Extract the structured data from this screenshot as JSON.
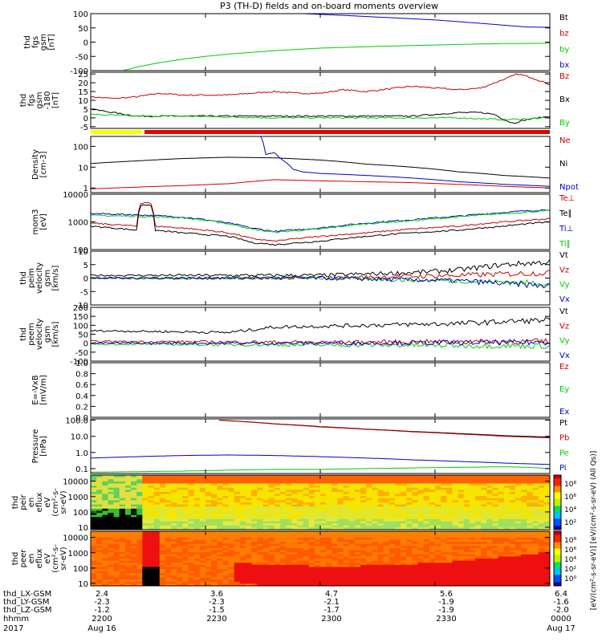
{
  "title": "P3 (TH-D) fields and on-board moments overview",
  "colors": {
    "black": "#000000",
    "red": "#cc0000",
    "green": "#00cc00",
    "blue": "#0000cc",
    "bar_yellow": "#ffff00",
    "bar_red": "#e60000"
  },
  "chart_data": [
    {
      "id": "fgs-gsm",
      "type": "line",
      "ylabel": [
        "thd",
        "fgs",
        "gsm",
        "[nT]"
      ],
      "ylim": [
        -100,
        100
      ],
      "yticks": [
        "100",
        "50",
        "0",
        "-50",
        "-100"
      ],
      "yticks_values": [
        100,
        50,
        0,
        -50,
        -100
      ],
      "legend": [
        {
          "label": "Bt",
          "color": "#000000"
        },
        {
          "label": "bz",
          "color": "#cc0000"
        },
        {
          "label": "by",
          "color": "#00cc00"
        },
        {
          "label": "bx",
          "color": "#0000cc"
        }
      ],
      "series": [
        {
          "name": "bx",
          "color": "#0000cc",
          "x": [
            0.25,
            0.35,
            0.45,
            0.55,
            0.65,
            0.75,
            0.85,
            0.95,
            1.0
          ],
          "values": [
            112,
            108,
            101,
            94,
            86,
            78,
            66,
            53,
            52
          ]
        },
        {
          "name": "by",
          "color": "#00cc00",
          "x": [
            0.07,
            0.1,
            0.15,
            0.2,
            0.25,
            0.3,
            0.4,
            0.5,
            0.6,
            0.7,
            0.8,
            0.9,
            1.0
          ],
          "values": [
            -100,
            -88,
            -72,
            -60,
            -50,
            -42,
            -30,
            -21,
            -16,
            -12,
            -8,
            -5,
            -4
          ]
        }
      ]
    },
    {
      "id": "fgs-gsm-zoom",
      "type": "line",
      "ylabel": [
        "thd",
        "fgs",
        "gsm",
        "-180",
        "[nT]"
      ],
      "ylim": [
        -6,
        26
      ],
      "yticks": [
        "25",
        "20",
        "15",
        "10",
        "5",
        "0",
        "-5"
      ],
      "yticks_values": [
        25,
        20,
        15,
        10,
        5,
        0,
        -5
      ],
      "legend": [
        {
          "label": "Bz",
          "color": "#cc0000"
        },
        {
          "label": "Bx",
          "color": "#000000"
        },
        {
          "label": "By",
          "color": "#00cc00"
        }
      ],
      "series": [
        {
          "name": "Bz",
          "color": "#cc0000",
          "x": [
            0,
            0.05,
            0.1,
            0.15,
            0.2,
            0.3,
            0.4,
            0.45,
            0.5,
            0.55,
            0.6,
            0.7,
            0.75,
            0.8,
            0.85,
            0.9,
            0.93,
            0.96,
            1.0
          ],
          "values": [
            12,
            11,
            12,
            14,
            13,
            13,
            15,
            14,
            14,
            16,
            15,
            18,
            17,
            16,
            17,
            22,
            25,
            23,
            19
          ]
        },
        {
          "name": "Bx",
          "color": "#000000",
          "x": [
            0,
            0.05,
            0.1,
            0.2,
            0.3,
            0.4,
            0.5,
            0.6,
            0.7,
            0.75,
            0.8,
            0.85,
            0.88,
            0.9,
            0.92,
            0.95,
            1.0
          ],
          "values": [
            5,
            3,
            1,
            1,
            1,
            1,
            1,
            1,
            1,
            2,
            3,
            3,
            2,
            -1,
            -3,
            -1,
            1
          ]
        },
        {
          "name": "By",
          "color": "#00cc00",
          "x": [
            0,
            0.1,
            0.2,
            0.4,
            0.6,
            0.8,
            0.9,
            1.0
          ],
          "values": [
            2,
            1,
            1,
            0,
            0,
            0,
            -1,
            0
          ]
        }
      ]
    },
    {
      "id": "density",
      "type": "line",
      "log": true,
      "ylabel": [
        "Density",
        "[cm-3]"
      ],
      "ylim": [
        0.6,
        300
      ],
      "yticks": [
        "100",
        "10",
        "1"
      ],
      "yticks_values": [
        100,
        10,
        1
      ],
      "legend": [
        {
          "label": "Ne",
          "color": "#cc0000"
        },
        {
          "label": "Ni",
          "color": "#000000"
        },
        {
          "label": "Npot",
          "color": "#0000cc"
        }
      ],
      "series": [
        {
          "name": "Ni",
          "color": "#000000",
          "x": [
            0,
            0.1,
            0.2,
            0.3,
            0.4,
            0.5,
            0.6,
            0.7,
            0.8,
            0.9,
            1.0
          ],
          "values": [
            15,
            20,
            26,
            30,
            28,
            22,
            14,
            10,
            6,
            4,
            3
          ]
        },
        {
          "name": "Ne",
          "color": "#cc0000",
          "x": [
            0,
            0.1,
            0.2,
            0.3,
            0.37,
            0.4,
            0.5,
            0.6,
            0.7,
            0.8,
            0.9,
            1.0
          ],
          "values": [
            0.9,
            1.1,
            1.3,
            1.6,
            2.2,
            2.5,
            2.2,
            2.0,
            1.8,
            1.5,
            1.2,
            1.0
          ]
        },
        {
          "name": "Npot",
          "color": "#0000cc",
          "x": [
            0.37,
            0.38,
            0.4,
            0.41,
            0.42,
            0.44,
            0.46,
            0.5,
            0.6,
            0.7,
            0.8,
            0.9,
            1.0
          ],
          "values": [
            300,
            40,
            50,
            30,
            20,
            8,
            6,
            5,
            4,
            3,
            2,
            1.5,
            1.2
          ]
        }
      ]
    },
    {
      "id": "temperature",
      "type": "line",
      "log": true,
      "ylabel": [
        "mom3",
        "[eV]"
      ],
      "ylim": [
        100,
        10000
      ],
      "yticks": [
        "10000",
        "1000",
        "100"
      ],
      "yticks_values": [
        10000,
        1000,
        100
      ],
      "legend": [
        {
          "label": "Te⊥",
          "color": "#cc0000"
        },
        {
          "label": "Te∥",
          "color": "#000000"
        },
        {
          "label": "Ti⊥",
          "color": "#0000cc"
        },
        {
          "label": "Ti∥",
          "color": "#00cc00"
        }
      ],
      "series": [
        {
          "name": "Ti⊥",
          "color": "#0000cc",
          "x": [
            0,
            0.1,
            0.2,
            0.3,
            0.35,
            0.4,
            0.5,
            0.6,
            0.7,
            0.8,
            0.9,
            1.0
          ],
          "values": [
            2000,
            1800,
            1500,
            900,
            600,
            450,
            600,
            900,
            1200,
            1600,
            2200,
            2800
          ]
        },
        {
          "name": "Ti∥",
          "color": "#00cc00",
          "x": [
            0,
            0.1,
            0.2,
            0.3,
            0.35,
            0.4,
            0.5,
            0.6,
            0.7,
            0.8,
            0.9,
            1.0
          ],
          "values": [
            1700,
            1600,
            1400,
            850,
            550,
            420,
            550,
            850,
            1100,
            1500,
            2000,
            2500
          ]
        },
        {
          "name": "Te⊥",
          "color": "#cc0000",
          "x": [
            0,
            0.1,
            0.11,
            0.13,
            0.14,
            0.2,
            0.3,
            0.35,
            0.4,
            0.5,
            0.6,
            0.7,
            0.8,
            0.9,
            1.0
          ],
          "values": [
            900,
            700,
            5000,
            5000,
            700,
            600,
            400,
            250,
            200,
            300,
            400,
            550,
            700,
            1000,
            1300
          ]
        },
        {
          "name": "Te∥",
          "color": "#000000",
          "x": [
            0,
            0.1,
            0.11,
            0.13,
            0.14,
            0.2,
            0.3,
            0.35,
            0.4,
            0.5,
            0.6,
            0.7,
            0.8,
            0.9,
            1.0
          ],
          "values": [
            700,
            500,
            4200,
            4200,
            500,
            400,
            300,
            180,
            150,
            200,
            300,
            400,
            500,
            700,
            1000
          ]
        }
      ]
    },
    {
      "id": "peim-velocity",
      "type": "line",
      "ylabel": [
        "thd",
        "peim",
        "velocity",
        "gsm",
        "[km/s]"
      ],
      "ylim": [
        -10,
        10
      ],
      "yticks": [
        "10",
        "5",
        "0",
        "-5",
        "-10"
      ],
      "yticks_values": [
        10,
        5,
        0,
        -5,
        -10
      ],
      "legend": [
        {
          "label": "Vt",
          "color": "#000000"
        },
        {
          "label": "Vz",
          "color": "#cc0000"
        },
        {
          "label": "Vy",
          "color": "#00cc00"
        },
        {
          "label": "Vx",
          "color": "#0000cc"
        }
      ],
      "series": [
        {
          "name": "Vt",
          "color": "#000000",
          "x": [
            0,
            0.3,
            0.5,
            0.7,
            0.8,
            0.9,
            1.0
          ],
          "values": [
            1,
            1,
            1,
            2,
            3,
            5,
            6
          ]
        },
        {
          "name": "Vz",
          "color": "#cc0000",
          "x": [
            0,
            0.5,
            0.8,
            1.0
          ],
          "values": [
            0,
            0,
            1,
            2
          ]
        },
        {
          "name": "Vy",
          "color": "#00cc00",
          "x": [
            0,
            0.5,
            0.8,
            1.0
          ],
          "values": [
            0,
            0,
            -1,
            -2
          ]
        },
        {
          "name": "Vx",
          "color": "#0000cc",
          "x": [
            0,
            0.5,
            0.8,
            1.0
          ],
          "values": [
            0,
            0,
            -1,
            -3
          ]
        }
      ]
    },
    {
      "id": "peem-velocity",
      "type": "line",
      "ylabel": [
        "thd",
        "peem",
        "velocity",
        "gsm",
        "[km/s]"
      ],
      "ylim": [
        -100,
        200
      ],
      "yticks": [
        "200",
        "150",
        "100",
        "50",
        "0",
        "-50",
        "-100"
      ],
      "yticks_values": [
        200,
        150,
        100,
        50,
        0,
        -50,
        -100
      ],
      "legend": [
        {
          "label": "Vt",
          "color": "#000000"
        },
        {
          "label": "Vz",
          "color": "#cc0000"
        },
        {
          "label": "Vy",
          "color": "#00cc00"
        },
        {
          "label": "Vx",
          "color": "#0000cc"
        }
      ],
      "series": [
        {
          "name": "Vt",
          "color": "#000000",
          "x": [
            0,
            0.3,
            0.4,
            0.6,
            0.8,
            1.0
          ],
          "values": [
            70,
            60,
            90,
            100,
            110,
            130
          ]
        },
        {
          "name": "Vz",
          "color": "#cc0000",
          "x": [
            0,
            0.5,
            1.0
          ],
          "values": [
            10,
            5,
            10
          ]
        },
        {
          "name": "Vy",
          "color": "#00cc00",
          "x": [
            0,
            0.5,
            1.0
          ],
          "values": [
            -5,
            -10,
            -15
          ]
        },
        {
          "name": "Vx",
          "color": "#0000cc",
          "x": [
            0,
            0.5,
            1.0
          ],
          "values": [
            0,
            0,
            5
          ]
        }
      ]
    },
    {
      "id": "efield",
      "type": "line",
      "ylabel": [
        "E=-VxB",
        "[mV/m]"
      ],
      "ylim": [
        0,
        1
      ],
      "yticks": [
        "1.0",
        "0.8",
        "0.6",
        "0.4",
        "0.2",
        "0.0"
      ],
      "yticks_values": [
        1.0,
        0.8,
        0.6,
        0.4,
        0.2,
        0.0
      ],
      "legend": [
        {
          "label": "Ez",
          "color": "#cc0000"
        },
        {
          "label": "Ey",
          "color": "#00cc00"
        },
        {
          "label": "Ex",
          "color": "#0000cc"
        }
      ],
      "series": []
    },
    {
      "id": "pressure",
      "type": "line",
      "log": true,
      "ylabel": [
        "Pressure",
        "[nPa]"
      ],
      "ylim": [
        0.05,
        120
      ],
      "yticks": [
        "100.0",
        "10.0",
        "1.0",
        "0.1"
      ],
      "yticks_values": [
        100,
        10,
        1,
        0.1
      ],
      "legend": [
        {
          "label": "Pt",
          "color": "#000000"
        },
        {
          "label": "Pb",
          "color": "#cc0000"
        },
        {
          "label": "Pe",
          "color": "#00cc00"
        },
        {
          "label": "Pi",
          "color": "#0000cc"
        }
      ],
      "series": [
        {
          "name": "Pt",
          "color": "#000000",
          "x": [
            0.28,
            0.4,
            0.5,
            0.6,
            0.7,
            0.8,
            0.9,
            1.0
          ],
          "values": [
            100,
            60,
            40,
            28,
            20,
            15,
            11,
            9
          ]
        },
        {
          "name": "Pb",
          "color": "#cc0000",
          "x": [
            0.28,
            0.4,
            0.5,
            0.6,
            0.7,
            0.8,
            0.9,
            1.0
          ],
          "values": [
            98,
            58,
            38,
            27,
            19,
            14,
            10,
            8
          ]
        },
        {
          "name": "Pi",
          "color": "#0000cc",
          "x": [
            0,
            0.1,
            0.2,
            0.3,
            0.4,
            0.5,
            0.6,
            0.7,
            0.8,
            0.9,
            1.0
          ],
          "values": [
            0.45,
            0.55,
            0.65,
            0.7,
            0.65,
            0.55,
            0.45,
            0.35,
            0.28,
            0.22,
            0.18
          ]
        },
        {
          "name": "Pe",
          "color": "#00cc00",
          "x": [
            0,
            0.1,
            0.2,
            0.3,
            0.4,
            0.5,
            0.6,
            0.7,
            0.8,
            0.9,
            0.95,
            1.0
          ],
          "values": [
            0.06,
            0.065,
            0.07,
            0.08,
            0.09,
            0.09,
            0.1,
            0.11,
            0.12,
            0.13,
            0.12,
            0.1
          ]
        }
      ]
    },
    {
      "id": "peir-spectrogram",
      "type": "heatmap",
      "log": true,
      "ylabel": [
        "thd",
        "peir",
        "en",
        "eflux",
        "eV",
        "(cm²-s-",
        "sr-eV)"
      ],
      "ylim": [
        7,
        25000
      ],
      "yticks": [
        "10000",
        "1000",
        "100",
        "10"
      ],
      "yticks_values": [
        10000,
        1000,
        100,
        10
      ]
    },
    {
      "id": "peer-spectrogram",
      "type": "heatmap",
      "log": true,
      "ylabel": [
        "thd",
        "peer",
        "en",
        "eflux",
        "eV",
        "(cm²-s-",
        "sr-eV)"
      ],
      "ylim": [
        7,
        25000
      ],
      "yticks": [
        "10000",
        "1000",
        "100",
        "10"
      ],
      "yticks_values": [
        10000,
        1000,
        100,
        10
      ]
    }
  ],
  "colorbar": {
    "label": "[eV/(cm²-s-sr-eV)] [eV/(cm²-s-sr-eV) (All Qs)]",
    "ticks_top": [
      "10⁸",
      "10⁶",
      "10⁴",
      "10²"
    ],
    "ticks_bottom": [
      "10⁸",
      "10⁶",
      "10⁴",
      "10²",
      "10⁰"
    ]
  },
  "xaxis": {
    "row_labels": [
      "thd_LX-GSM",
      "thd_LY-GSM",
      "thd_LZ-GSM",
      "hhmm",
      "2017"
    ],
    "ticks": [
      {
        "lx": "2.4",
        "ly": "-2.3",
        "lz": "-1.2",
        "hhmm": "2200",
        "date": "Aug 16"
      },
      {
        "lx": "3.6",
        "ly": "-2.3",
        "lz": "-1.5",
        "hhmm": "2230",
        "date": ""
      },
      {
        "lx": "4.7",
        "ly": "-2.1",
        "lz": "-1.7",
        "hhmm": "2300",
        "date": ""
      },
      {
        "lx": "5.6",
        "ly": "-1.9",
        "lz": "-1.9",
        "hhmm": "2330",
        "date": ""
      },
      {
        "lx": "6.4",
        "ly": "-1.6",
        "lz": "-2.0",
        "hhmm": "0000",
        "date": "Aug 17"
      }
    ]
  }
}
